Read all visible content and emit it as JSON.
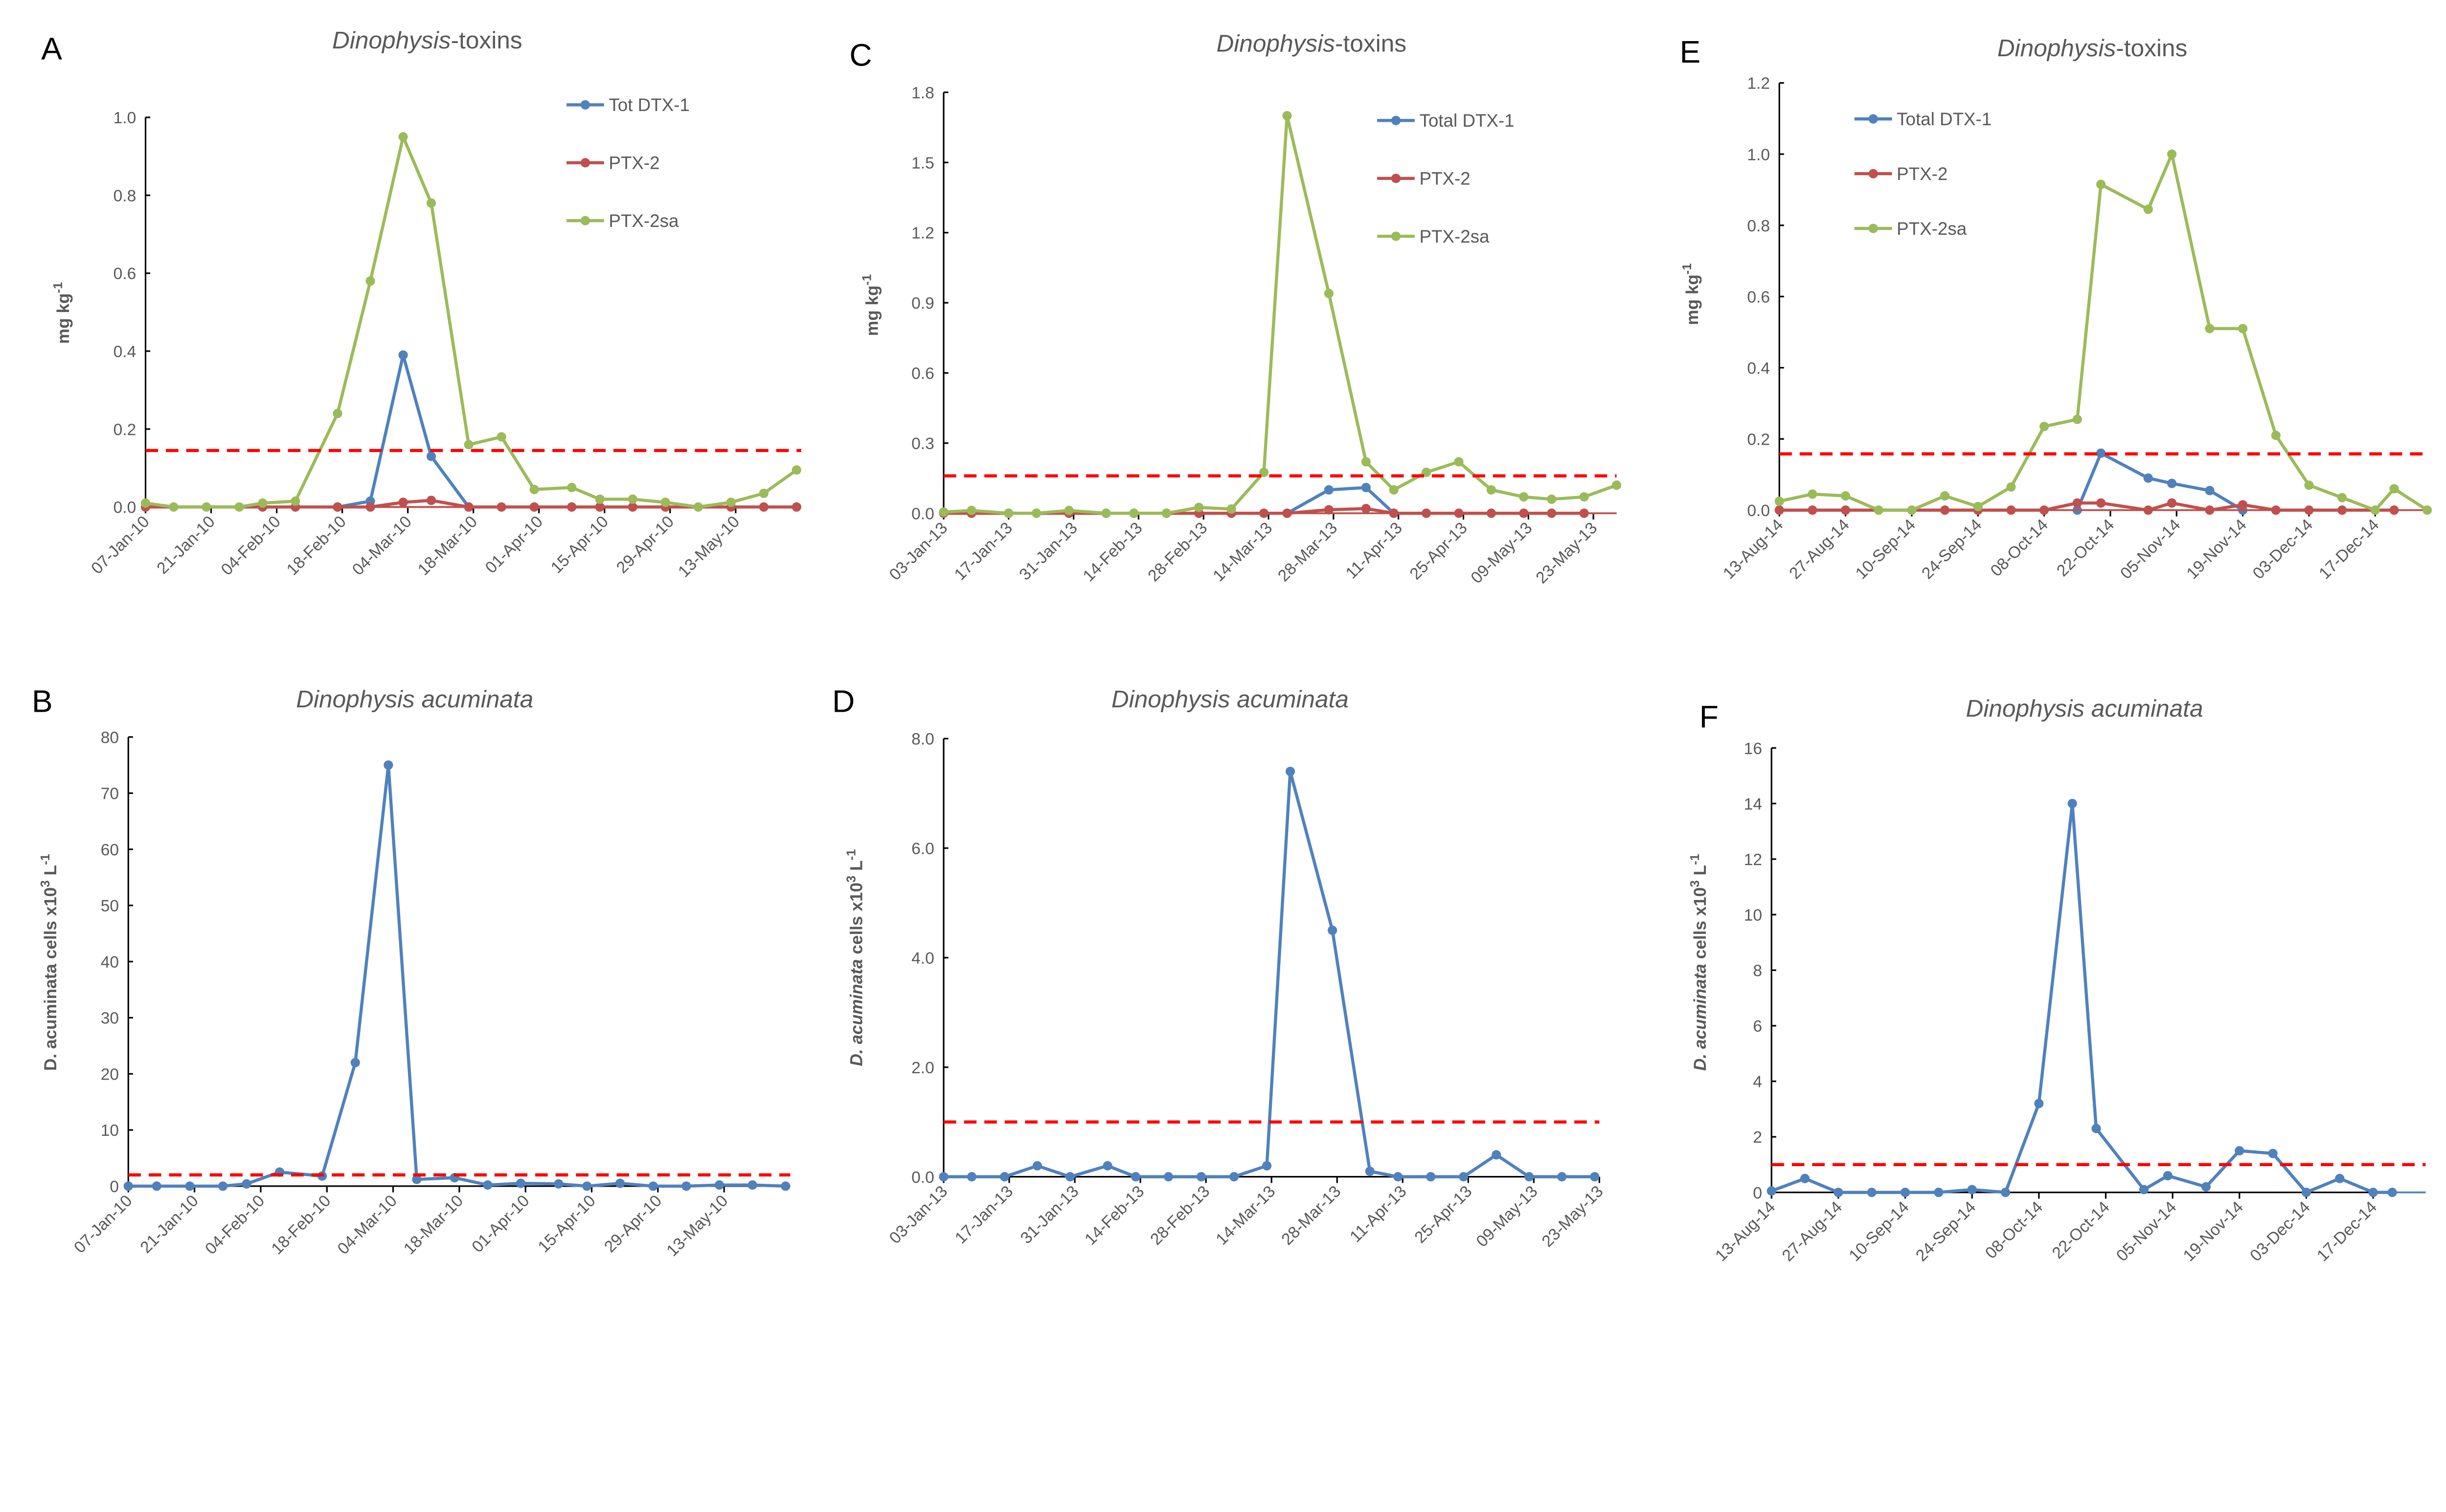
{
  "colors": {
    "tot_dtx1": "#4F81BD",
    "ptx2": "#C0504D",
    "ptx2sa": "#9BBB59",
    "threshold": "#FF0000",
    "axis": "#000000"
  },
  "chart_data": [
    {
      "panel": "A",
      "type": "line",
      "title": {
        "italic": "Dinophysis",
        "normal": "-toxins"
      },
      "ylabel": {
        "parts": [
          {
            "t": "mg  kg"
          },
          {
            "t": "-1",
            "sup": true
          }
        ]
      },
      "xlim": [
        "2010-01-07",
        "2010-05-27"
      ],
      "xticks": [
        "07-Jan-10",
        "21-Jan-10",
        "04-Feb-10",
        "18-Feb-10",
        "04-Mar-10",
        "18-Mar-10",
        "01-Apr-10",
        "15-Apr-10",
        "29-Apr-10",
        "13-May-10"
      ],
      "ylim": [
        0,
        1.0
      ],
      "yticks": [
        "0.0",
        "0.2",
        "0.4",
        "0.6",
        "0.8",
        "1.0"
      ],
      "threshold": 0.145,
      "legend_placement": "top-right",
      "x": [
        "2010-01-07",
        "2010-01-13",
        "2010-01-20",
        "2010-01-27",
        "2010-02-01",
        "2010-02-08",
        "2010-02-17",
        "2010-02-24",
        "2010-03-03",
        "2010-03-09",
        "2010-03-17",
        "2010-03-24",
        "2010-03-31",
        "2010-04-08",
        "2010-04-14",
        "2010-04-21",
        "2010-04-28",
        "2010-05-05",
        "2010-05-12",
        "2010-05-19",
        "2010-05-26"
      ],
      "series": [
        {
          "name": "Tot DTX-1",
          "color": "#4F81BD",
          "values": [
            null,
            null,
            null,
            null,
            null,
            null,
            0,
            0.015,
            0.39,
            0.13,
            0,
            null,
            null,
            null,
            null,
            null,
            null,
            null,
            null,
            null,
            null
          ]
        },
        {
          "name": "PTX-2",
          "color": "#C0504D",
          "values": [
            0,
            null,
            null,
            null,
            0,
            0,
            0,
            0,
            0.012,
            0.017,
            0,
            0,
            0,
            0,
            0,
            0,
            0,
            null,
            0,
            0,
            0
          ]
        },
        {
          "name": "PTX-2sa",
          "color": "#9BBB59",
          "values": [
            0.01,
            0,
            0,
            0,
            0.01,
            0.015,
            0.24,
            0.58,
            0.95,
            0.78,
            0.16,
            0.18,
            0.045,
            0.05,
            0.02,
            0.02,
            0.012,
            0,
            0.012,
            0.035,
            0.095
          ]
        }
      ]
    },
    {
      "panel": "B",
      "type": "line",
      "title": {
        "italic": "Dinophysis acuminata",
        "normal": ""
      },
      "ylabel": {
        "parts": [
          {
            "t": "D. acuminata cells x10"
          },
          {
            "t": "3",
            "sup": true
          },
          {
            "t": "  L"
          },
          {
            "t": "-1",
            "sup": true
          }
        ]
      },
      "xlim": [
        "2010-01-07",
        "2010-05-27"
      ],
      "xticks": [
        "07-Jan-10",
        "21-Jan-10",
        "04-Feb-10",
        "18-Feb-10",
        "04-Mar-10",
        "18-Mar-10",
        "01-Apr-10",
        "15-Apr-10",
        "29-Apr-10",
        "13-May-10"
      ],
      "ylim": [
        0,
        80
      ],
      "yticks": [
        "0",
        "10",
        "20",
        "30",
        "40",
        "50",
        "60",
        "70",
        "80"
      ],
      "threshold": 2,
      "x": [
        "2010-01-07",
        "2010-01-13",
        "2010-01-20",
        "2010-01-27",
        "2010-02-01",
        "2010-02-08",
        "2010-02-17",
        "2010-02-24",
        "2010-03-03",
        "2010-03-09",
        "2010-03-17",
        "2010-03-24",
        "2010-03-31",
        "2010-04-08",
        "2010-04-14",
        "2010-04-21",
        "2010-04-28",
        "2010-05-05",
        "2010-05-12",
        "2010-05-19",
        "2010-05-26"
      ],
      "series": [
        {
          "color": "#4F81BD",
          "values": [
            0,
            0,
            0,
            0,
            0.4,
            2.5,
            1.8,
            22,
            75,
            1.2,
            1.5,
            0.2,
            0.5,
            0.4,
            0,
            0.5,
            0,
            0,
            0.2,
            0.2,
            0
          ]
        }
      ]
    },
    {
      "panel": "C",
      "type": "line",
      "title": {
        "italic": "Dinophysis",
        "normal": "-toxins"
      },
      "ylabel": {
        "parts": [
          {
            "t": "mg  kg"
          },
          {
            "t": "-1",
            "sup": true
          }
        ]
      },
      "xlim": [
        "2013-01-03",
        "2013-05-28"
      ],
      "xticks": [
        "03-Jan-13",
        "17-Jan-13",
        "31-Jan-13",
        "14-Feb-13",
        "28-Feb-13",
        "14-Mar-13",
        "28-Mar-13",
        "11-Apr-13",
        "25-Apr-13",
        "09-May-13",
        "23-May-13"
      ],
      "ylim": [
        0,
        1.8
      ],
      "yticks": [
        "0.0",
        "0.3",
        "0.6",
        "0.9",
        "1.2",
        "1.5",
        "1.8"
      ],
      "threshold": 0.16,
      "legend_placement": "top-right",
      "x": [
        "2013-01-03",
        "2013-01-09",
        "2013-01-17",
        "2013-01-23",
        "2013-01-30",
        "2013-02-07",
        "2013-02-13",
        "2013-02-20",
        "2013-02-27",
        "2013-03-06",
        "2013-03-13",
        "2013-03-18",
        "2013-03-27",
        "2013-04-04",
        "2013-04-10",
        "2013-04-17",
        "2013-04-24",
        "2013-05-01",
        "2013-05-08",
        "2013-05-14",
        "2013-05-21",
        "2013-05-28"
      ],
      "series": [
        {
          "name": "Total DTX-1",
          "color": "#4F81BD",
          "values": [
            null,
            null,
            null,
            null,
            null,
            null,
            null,
            null,
            null,
            null,
            null,
            0,
            0.1,
            0.11,
            0,
            null,
            null,
            null,
            null,
            null,
            null,
            null
          ]
        },
        {
          "name": "PTX-2",
          "color": "#C0504D",
          "values": [
            0,
            0,
            0,
            0,
            0,
            0,
            0,
            0,
            0,
            0,
            0,
            0,
            0.015,
            0.02,
            0,
            0,
            0,
            0,
            0,
            0,
            0,
            null
          ]
        },
        {
          "name": "PTX-2sa",
          "color": "#9BBB59",
          "values": [
            0.005,
            0.012,
            0,
            0,
            0.012,
            0,
            0,
            0,
            0.025,
            0.018,
            0.175,
            1.7,
            0.94,
            0.22,
            0.1,
            0.175,
            0.22,
            0.1,
            0.07,
            0.06,
            0.07,
            0.12
          ]
        }
      ]
    },
    {
      "panel": "D",
      "type": "line",
      "title": {
        "italic": "Dinophysis acuminata",
        "normal": ""
      },
      "ylabel": {
        "parts": [
          {
            "t": "D. acuminata",
            "italic": true
          },
          {
            "t": "  cells x10"
          },
          {
            "t": "3",
            "sup": true
          },
          {
            "t": "  L"
          },
          {
            "t": "-1",
            "sup": true
          }
        ]
      },
      "xlim": [
        "2013-01-03",
        "2013-05-23"
      ],
      "xticks": [
        "03-Jan-13",
        "17-Jan-13",
        "31-Jan-13",
        "14-Feb-13",
        "28-Feb-13",
        "14-Mar-13",
        "28-Mar-13",
        "11-Apr-13",
        "25-Apr-13",
        "09-May-13",
        "23-May-13"
      ],
      "ylim": [
        0,
        8
      ],
      "yticks": [
        "0.0",
        "2.0",
        "4.0",
        "6.0",
        "8.0"
      ],
      "threshold": 1.0,
      "x": [
        "2013-01-03",
        "2013-01-09",
        "2013-01-16",
        "2013-01-23",
        "2013-01-30",
        "2013-02-07",
        "2013-02-13",
        "2013-02-20",
        "2013-02-27",
        "2013-03-06",
        "2013-03-13",
        "2013-03-18",
        "2013-03-27",
        "2013-04-04",
        "2013-04-10",
        "2013-04-17",
        "2013-04-24",
        "2013-05-01",
        "2013-05-08",
        "2013-05-15",
        "2013-05-22"
      ],
      "series": [
        {
          "color": "#4F81BD",
          "values": [
            0,
            0,
            0,
            0.2,
            0,
            0.2,
            0,
            0,
            0,
            0,
            0.2,
            7.4,
            4.5,
            0.1,
            0,
            0,
            0,
            0.4,
            0,
            0,
            0
          ]
        }
      ]
    },
    {
      "panel": "E",
      "type": "line",
      "title": {
        "italic": "Dinophysis",
        "normal": "-toxins"
      },
      "ylabel": {
        "parts": [
          {
            "t": "mg  kg"
          },
          {
            "t": "-1",
            "sup": true
          }
        ]
      },
      "xlim": [
        "2014-08-13",
        "2014-12-28"
      ],
      "xticks": [
        "13-Aug-14",
        "27-Aug-14",
        "10-Sep-14",
        "24-Sep-14",
        "08-Oct-14",
        "22-Oct-14",
        "05-Nov-14",
        "19-Nov-14",
        "03-Dec-14",
        "17-Dec-14"
      ],
      "ylim": [
        0,
        1.2
      ],
      "yticks": [
        "0.0",
        "0.2",
        "0.4",
        "0.6",
        "0.8",
        "1.0",
        "1.2"
      ],
      "threshold": 0.158,
      "legend_placement": "top-left",
      "x": [
        "2014-08-13",
        "2014-08-20",
        "2014-08-27",
        "2014-09-03",
        "2014-09-10",
        "2014-09-17",
        "2014-09-24",
        "2014-10-01",
        "2014-10-08",
        "2014-10-15",
        "2014-10-20",
        "2014-10-30",
        "2014-11-04",
        "2014-11-12",
        "2014-11-19",
        "2014-11-26",
        "2014-12-03",
        "2014-12-10",
        "2014-12-17",
        "2014-12-21",
        "2014-12-28"
      ],
      "series": [
        {
          "name": "Total DTX-1",
          "color": "#4F81BD",
          "values": [
            null,
            null,
            null,
            null,
            null,
            null,
            null,
            null,
            null,
            0,
            0.16,
            0.09,
            0.075,
            0.055,
            0,
            null,
            null,
            null,
            null,
            null,
            null
          ]
        },
        {
          "name": "PTX-2",
          "color": "#C0504D",
          "values": [
            0,
            0,
            0,
            null,
            null,
            0,
            0,
            0,
            0,
            0.02,
            0.02,
            0,
            0.02,
            0,
            0.015,
            0,
            0,
            0,
            null,
            0,
            null
          ]
        },
        {
          "name": "PTX-2sa",
          "color": "#9BBB59",
          "values": [
            0.025,
            0.045,
            0.04,
            0,
            0,
            0.04,
            0.01,
            0.065,
            0.235,
            0.255,
            0.915,
            0.845,
            1.0,
            0.51,
            0.51,
            0.21,
            0.07,
            0.035,
            0,
            0.06,
            0
          ]
        }
      ]
    },
    {
      "panel": "F",
      "type": "line",
      "title": {
        "italic": "Dinophysis acuminata",
        "normal": ""
      },
      "ylabel": {
        "parts": [
          {
            "t": "D. acuminata",
            "italic": true
          },
          {
            "t": "  cells x10"
          },
          {
            "t": "3",
            "sup": true
          },
          {
            "t": "   L"
          },
          {
            "t": "-1",
            "sup": true
          }
        ]
      },
      "xlim": [
        "2014-08-13",
        "2014-12-28"
      ],
      "xticks": [
        "13-Aug-14",
        "27-Aug-14",
        "10-Sep-14",
        "24-Sep-14",
        "08-Oct-14",
        "22-Oct-14",
        "05-Nov-14",
        "19-Nov-14",
        "03-Dec-14",
        "17-Dec-14"
      ],
      "ylim": [
        0,
        16
      ],
      "yticks": [
        "0",
        "2",
        "4",
        "6",
        "8",
        "10",
        "12",
        "14",
        "16"
      ],
      "threshold": 1.0,
      "x": [
        "2014-08-13",
        "2014-08-20",
        "2014-08-27",
        "2014-09-03",
        "2014-09-10",
        "2014-09-17",
        "2014-09-24",
        "2014-10-01",
        "2014-10-08",
        "2014-10-15",
        "2014-10-20",
        "2014-10-30",
        "2014-11-04",
        "2014-11-12",
        "2014-11-19",
        "2014-11-26",
        "2014-12-03",
        "2014-12-10",
        "2014-12-17",
        "2014-12-21"
      ],
      "series": [
        {
          "color": "#4F81BD",
          "values": [
            0.05,
            0.5,
            0,
            0,
            0,
            0,
            0.1,
            0,
            3.2,
            14,
            2.3,
            0.1,
            0.6,
            0.2,
            1.5,
            1.4,
            0,
            0.5,
            0,
            0
          ]
        }
      ]
    }
  ]
}
